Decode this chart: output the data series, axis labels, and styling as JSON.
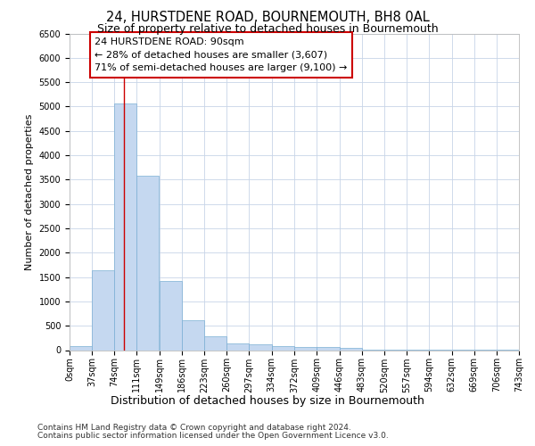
{
  "title": "24, HURSTDENE ROAD, BOURNEMOUTH, BH8 0AL",
  "subtitle": "Size of property relative to detached houses in Bournemouth",
  "xlabel": "Distribution of detached houses by size in Bournemouth",
  "ylabel": "Number of detached properties",
  "bar_color": "#c5d8f0",
  "bar_edge_color": "#7bafd4",
  "grid_color": "#c8d4e8",
  "annotation_box_color": "#cc0000",
  "annotation_line_color": "#cc0000",
  "footer_line1": "Contains HM Land Registry data © Crown copyright and database right 2024.",
  "footer_line2": "Contains public sector information licensed under the Open Government Licence v3.0.",
  "annotation_text_line1": "24 HURSTDENE ROAD: 90sqm",
  "annotation_text_line2": "← 28% of detached houses are smaller (3,607)",
  "annotation_text_line3": "71% of semi-detached houses are larger (9,100) →",
  "property_sqm": 90,
  "bin_edges": [
    0,
    37,
    74,
    111,
    149,
    186,
    223,
    260,
    297,
    334,
    372,
    409,
    446,
    483,
    520,
    557,
    594,
    632,
    669,
    706,
    743
  ],
  "bin_labels": [
    "0sqm",
    "37sqm",
    "74sqm",
    "111sqm",
    "149sqm",
    "186sqm",
    "223sqm",
    "260sqm",
    "297sqm",
    "334sqm",
    "372sqm",
    "409sqm",
    "446sqm",
    "483sqm",
    "520sqm",
    "557sqm",
    "594sqm",
    "632sqm",
    "669sqm",
    "706sqm",
    "743sqm"
  ],
  "bar_heights": [
    75,
    1630,
    5060,
    3580,
    1410,
    620,
    290,
    140,
    110,
    75,
    65,
    65,
    50,
    10,
    10,
    5,
    5,
    5,
    5,
    5
  ],
  "ylim": [
    0,
    6500
  ],
  "yticks": [
    0,
    500,
    1000,
    1500,
    2000,
    2500,
    3000,
    3500,
    4000,
    4500,
    5000,
    5500,
    6000,
    6500
  ],
  "title_fontsize": 10.5,
  "subtitle_fontsize": 9,
  "xlabel_fontsize": 9,
  "ylabel_fontsize": 8,
  "tick_fontsize": 7,
  "footer_fontsize": 6.5,
  "annotation_fontsize": 8
}
